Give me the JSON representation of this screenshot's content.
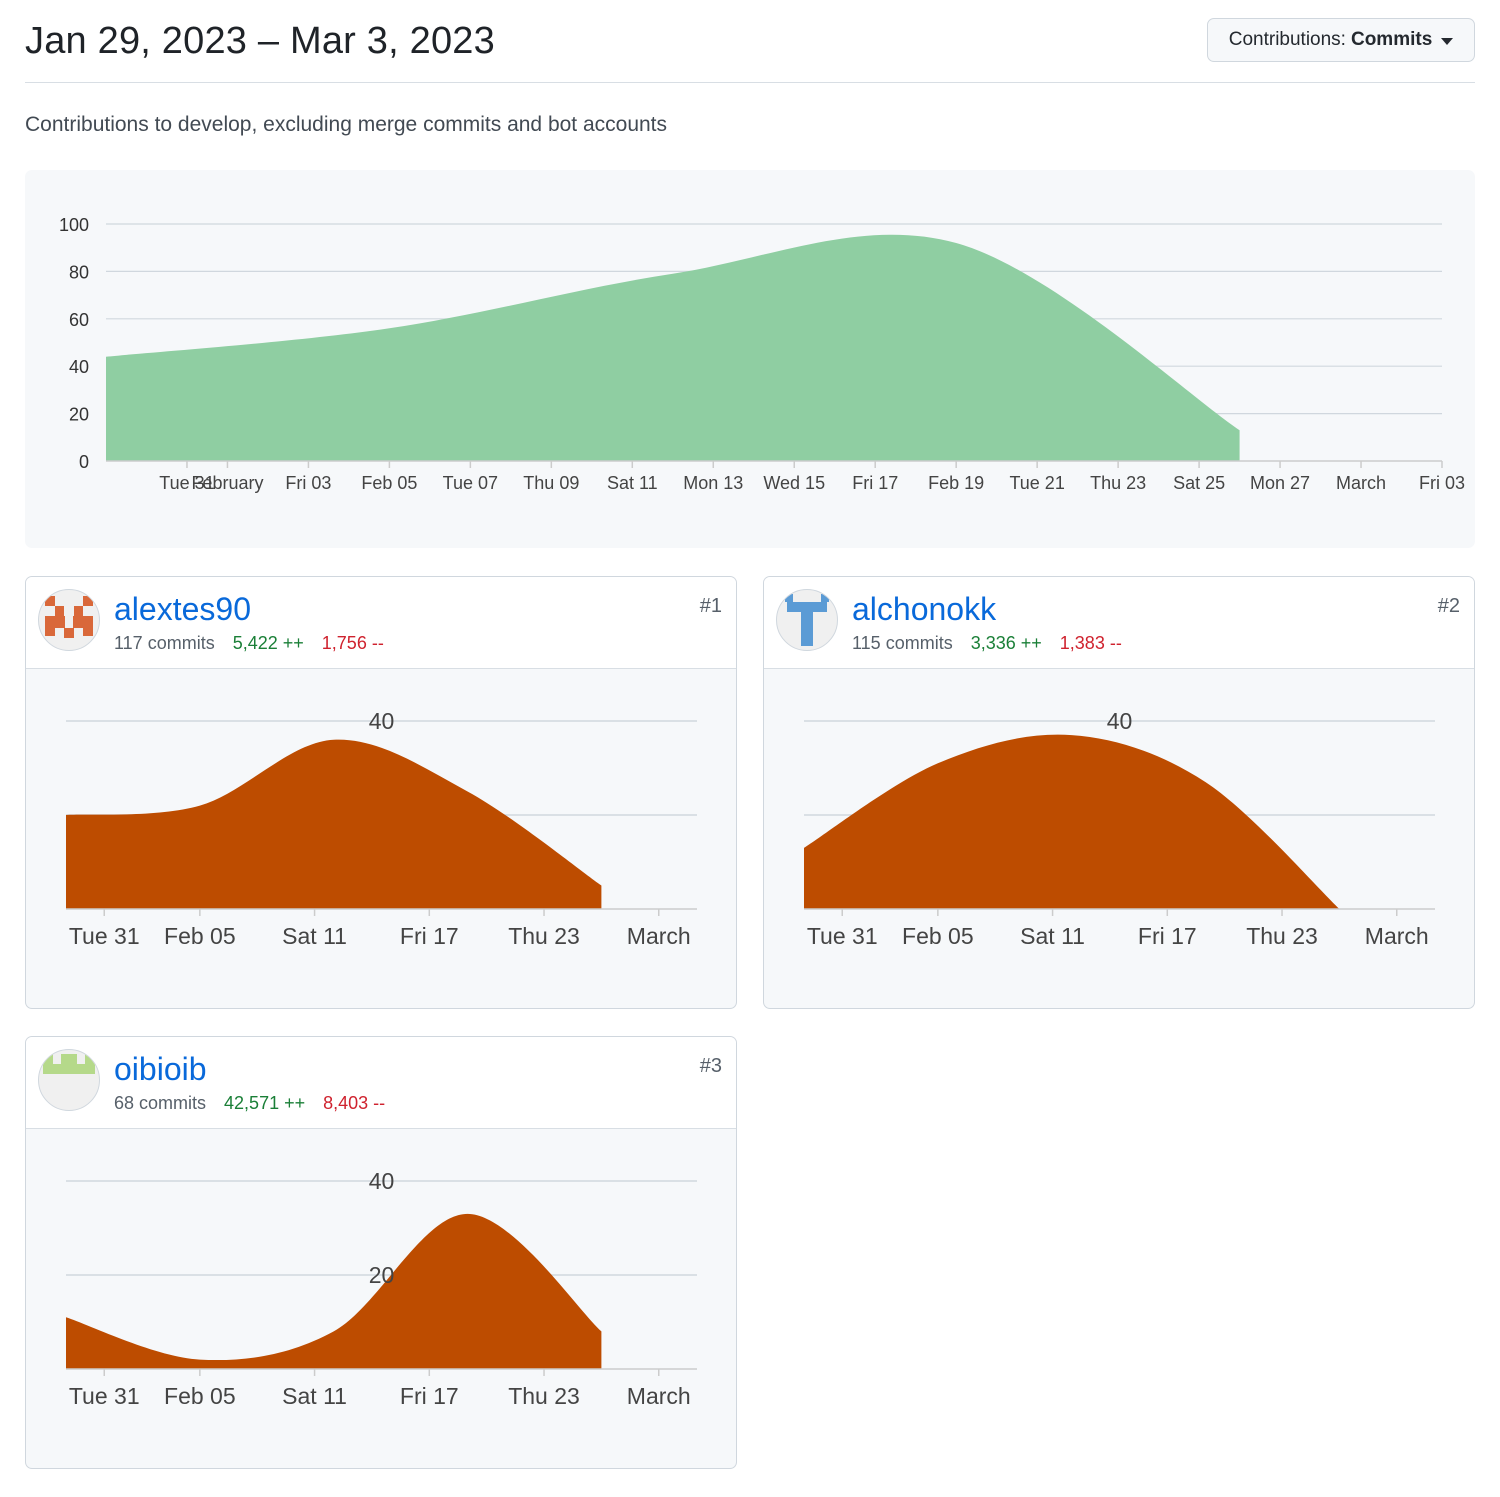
{
  "header": {
    "date_range": "Jan 29, 2023 – Mar 3, 2023",
    "dropdown_label": "Contributions:",
    "dropdown_value": "Commits"
  },
  "subtitle": "Contributions to develop, excluding merge commits and bot accounts",
  "colors": {
    "main_fill": "#8fcea2",
    "contributor_fill": "#bd4c00",
    "gridline": "#d0d7de",
    "link": "#0969da",
    "additions": "#1a7f37",
    "deletions": "#cf222e"
  },
  "chart_data": [
    {
      "type": "area",
      "title": "",
      "x_start": "2023-01-29",
      "x_end": "2023-03-03",
      "xlim": [
        "2023-01-29",
        "2023-03-03"
      ],
      "ylim": [
        0,
        100
      ],
      "yticks": [
        0,
        20,
        40,
        60,
        80,
        100
      ],
      "xticks": [
        {
          "date": "2023-01-31",
          "label": "Tue 31"
        },
        {
          "date": "2023-02-01",
          "label": "February"
        },
        {
          "date": "2023-02-03",
          "label": "Fri 03"
        },
        {
          "date": "2023-02-05",
          "label": "Feb 05"
        },
        {
          "date": "2023-02-07",
          "label": "Tue 07"
        },
        {
          "date": "2023-02-09",
          "label": "Thu 09"
        },
        {
          "date": "2023-02-11",
          "label": "Sat 11"
        },
        {
          "date": "2023-02-13",
          "label": "Mon 13"
        },
        {
          "date": "2023-02-15",
          "label": "Wed 15"
        },
        {
          "date": "2023-02-17",
          "label": "Fri 17"
        },
        {
          "date": "2023-02-19",
          "label": "Feb 19"
        },
        {
          "date": "2023-02-21",
          "label": "Tue 21"
        },
        {
          "date": "2023-02-23",
          "label": "Thu 23"
        },
        {
          "date": "2023-02-25",
          "label": "Sat 25"
        },
        {
          "date": "2023-02-27",
          "label": "Mon 27"
        },
        {
          "date": "2023-03-01",
          "label": "March"
        },
        {
          "date": "2023-03-03",
          "label": "Fri 03"
        }
      ],
      "grid": true,
      "series": [
        {
          "x": [
            "2023-01-29",
            "2023-02-05",
            "2023-02-12",
            "2023-02-19",
            "2023-02-26"
          ],
          "y": [
            44,
            56,
            79,
            92,
            13
          ]
        }
      ]
    },
    {
      "type": "area",
      "title": "",
      "ylim": [
        0,
        40
      ],
      "yticks": [
        40
      ],
      "gridlines": [
        20,
        40
      ],
      "xticks": [
        {
          "date": "2023-01-31",
          "label": "Tue 31"
        },
        {
          "date": "2023-02-05",
          "label": "Feb 05"
        },
        {
          "date": "2023-02-11",
          "label": "Sat 11"
        },
        {
          "date": "2023-02-17",
          "label": "Fri 17"
        },
        {
          "date": "2023-02-23",
          "label": "Thu 23"
        },
        {
          "date": "2023-03-01",
          "label": "March"
        }
      ],
      "series": [
        {
          "x": [
            "2023-01-29",
            "2023-02-05",
            "2023-02-12",
            "2023-02-19",
            "2023-02-26"
          ],
          "y": [
            20,
            22,
            36,
            25,
            5
          ]
        }
      ]
    },
    {
      "type": "area",
      "title": "",
      "ylim": [
        0,
        40
      ],
      "yticks": [
        40
      ],
      "gridlines": [
        20,
        40
      ],
      "xticks": [
        {
          "date": "2023-01-31",
          "label": "Tue 31"
        },
        {
          "date": "2023-02-05",
          "label": "Feb 05"
        },
        {
          "date": "2023-02-11",
          "label": "Sat 11"
        },
        {
          "date": "2023-02-17",
          "label": "Fri 17"
        },
        {
          "date": "2023-02-23",
          "label": "Thu 23"
        },
        {
          "date": "2023-03-01",
          "label": "March"
        }
      ],
      "series": [
        {
          "x": [
            "2023-01-29",
            "2023-02-05",
            "2023-02-12",
            "2023-02-19",
            "2023-02-26"
          ],
          "y": [
            13,
            31,
            37,
            27,
            0
          ]
        }
      ]
    },
    {
      "type": "area",
      "title": "",
      "ylim": [
        0,
        40
      ],
      "yticks": [
        20,
        40
      ],
      "gridlines": [
        20,
        40
      ],
      "xticks": [
        {
          "date": "2023-01-31",
          "label": "Tue 31"
        },
        {
          "date": "2023-02-05",
          "label": "Feb 05"
        },
        {
          "date": "2023-02-11",
          "label": "Sat 11"
        },
        {
          "date": "2023-02-17",
          "label": "Fri 17"
        },
        {
          "date": "2023-02-23",
          "label": "Thu 23"
        },
        {
          "date": "2023-03-01",
          "label": "March"
        }
      ],
      "series": [
        {
          "x": [
            "2023-01-29",
            "2023-02-05",
            "2023-02-12",
            "2023-02-19",
            "2023-02-26"
          ],
          "y": [
            11,
            2,
            8,
            33,
            8
          ]
        }
      ]
    }
  ],
  "contributors": [
    {
      "username": "alextes90",
      "rank": "#1",
      "commits": "117 commits",
      "additions": "5,422 ++",
      "deletions": "1,756 --",
      "avatar_color": "#d9683a",
      "avatar_icon": "identicon-checker"
    },
    {
      "username": "alchonokk",
      "rank": "#2",
      "commits": "115 commits",
      "additions": "3,336 ++",
      "deletions": "1,383 --",
      "avatar_color": "#5b9bd5",
      "avatar_icon": "identicon-t"
    },
    {
      "username": "oibioib",
      "rank": "#3",
      "commits": "68 commits",
      "additions": "42,571 ++",
      "deletions": "8,403 --",
      "avatar_color": "#b5d98a",
      "avatar_icon": "identicon-crenel"
    }
  ]
}
